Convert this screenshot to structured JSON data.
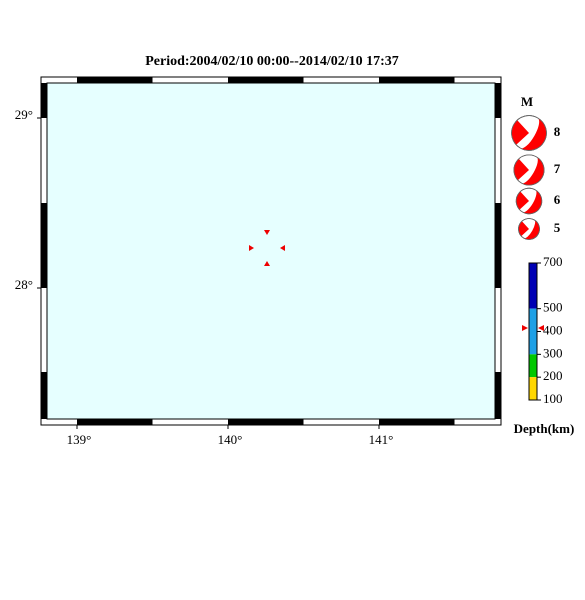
{
  "map": {
    "title": "Period:2004/02/10 00:00--2014/02/10 17:37",
    "lon_ticks": [
      {
        "value": 139,
        "label": "139°"
      },
      {
        "value": 140,
        "label": "140°"
      },
      {
        "value": 141,
        "label": "141°"
      }
    ],
    "lat_ticks": [
      {
        "value": 29,
        "label": "29°"
      },
      {
        "value": 28,
        "label": "28°"
      }
    ],
    "magnitude_legend": {
      "title": "M",
      "values": [
        8,
        7,
        6,
        5
      ],
      "color": "#ff0000"
    },
    "depth_scale": {
      "title": "Depth(km)",
      "ticks": [
        700,
        500,
        400,
        300,
        200,
        100
      ],
      "colors": [
        "#0000b4",
        "#1ea0e6",
        "#1ea0e6",
        "#00c800",
        "#ffd700"
      ]
    },
    "background": "#e6ffff"
  }
}
